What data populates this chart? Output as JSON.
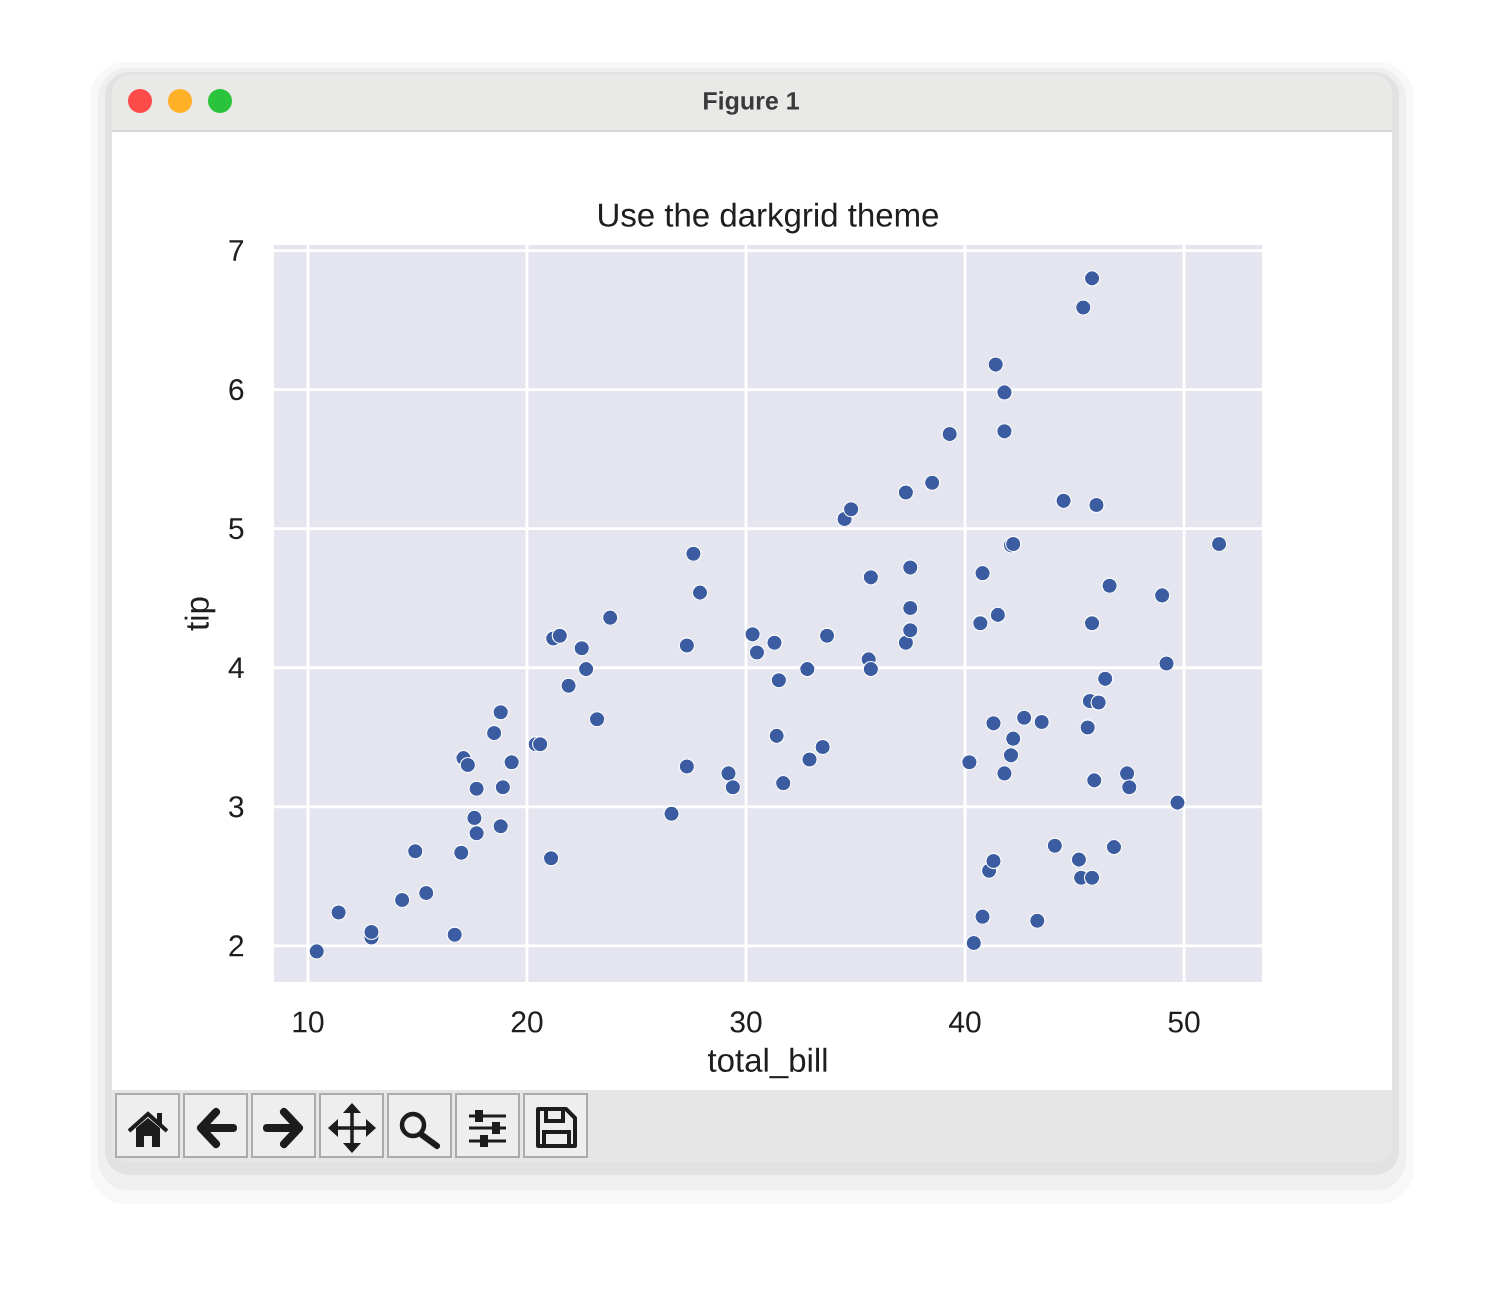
{
  "chart_data": {
    "type": "scatter",
    "title": "Use the darkgrid theme",
    "xlabel": "total_bill",
    "ylabel": "tip",
    "annotations": [
      "Figure 1"
    ],
    "x": [
      10.4,
      11.4,
      12.9,
      12.9,
      14.3,
      14.9,
      15.4,
      16.7,
      17.0,
      17.1,
      17.3,
      17.7,
      17.6,
      17.7,
      18.5,
      18.8,
      18.9,
      18.8,
      19.3,
      20.4,
      20.6,
      21.1,
      21.2,
      21.5,
      21.9,
      22.5,
      22.7,
      23.2,
      23.8,
      26.6,
      27.3,
      27.3,
      27.6,
      27.9,
      29.2,
      29.4,
      30.3,
      30.5,
      31.3,
      31.4,
      31.5,
      31.7,
      32.8,
      32.9,
      33.5,
      33.7,
      34.5,
      34.8,
      35.6,
      35.7,
      35.7,
      37.3,
      37.3,
      37.5,
      37.5,
      37.5,
      38.5,
      39.3,
      40.2,
      40.4,
      40.7,
      40.8,
      40.8,
      41.1,
      41.3,
      41.3,
      41.4,
      41.5,
      41.8,
      41.8,
      41.8,
      42.1,
      42.1,
      42.2,
      42.2,
      42.7,
      43.3,
      43.5,
      44.1,
      44.5,
      45.2,
      45.3,
      45.4,
      45.6,
      45.7,
      45.8,
      45.8,
      45.8,
      45.9,
      46.0,
      46.1,
      46.4,
      46.6,
      46.8,
      47.4,
      47.5,
      49.0,
      49.2,
      49.7,
      51.6
    ],
    "values": [
      1.96,
      2.24,
      2.06,
      2.1,
      2.33,
      2.68,
      2.38,
      2.08,
      2.67,
      3.35,
      3.3,
      3.13,
      2.92,
      2.81,
      3.53,
      3.68,
      3.14,
      2.86,
      3.32,
      3.45,
      3.45,
      2.63,
      4.21,
      4.23,
      3.87,
      4.14,
      3.99,
      3.63,
      4.36,
      2.95,
      3.29,
      4.16,
      4.82,
      4.54,
      3.24,
      3.14,
      4.24,
      4.11,
      4.18,
      3.51,
      3.91,
      3.17,
      3.99,
      3.34,
      3.43,
      4.23,
      5.07,
      5.14,
      4.06,
      3.99,
      4.65,
      5.26,
      4.18,
      4.27,
      4.43,
      4.72,
      5.33,
      5.68,
      3.32,
      2.02,
      4.32,
      4.68,
      2.21,
      2.54,
      2.61,
      3.6,
      6.18,
      4.38,
      5.7,
      5.98,
      3.24,
      4.88,
      3.37,
      4.89,
      3.49,
      3.64,
      2.18,
      3.61,
      2.72,
      5.2,
      2.62,
      2.49,
      6.59,
      3.57,
      3.76,
      4.32,
      6.8,
      2.49,
      3.19,
      5.17,
      3.75,
      3.92,
      4.59,
      2.71,
      3.24,
      3.14,
      4.52,
      4.03,
      3.03,
      4.89
    ],
    "color": "#3b5ca0",
    "marker": "circle",
    "grid": true,
    "xlim": [
      8.45,
      53.56
    ],
    "ylim": [
      1.74,
      7.04
    ],
    "xticks": [
      10,
      20,
      30,
      40,
      50
    ],
    "yticks": [
      2,
      3,
      4,
      5,
      6,
      7
    ]
  }
}
